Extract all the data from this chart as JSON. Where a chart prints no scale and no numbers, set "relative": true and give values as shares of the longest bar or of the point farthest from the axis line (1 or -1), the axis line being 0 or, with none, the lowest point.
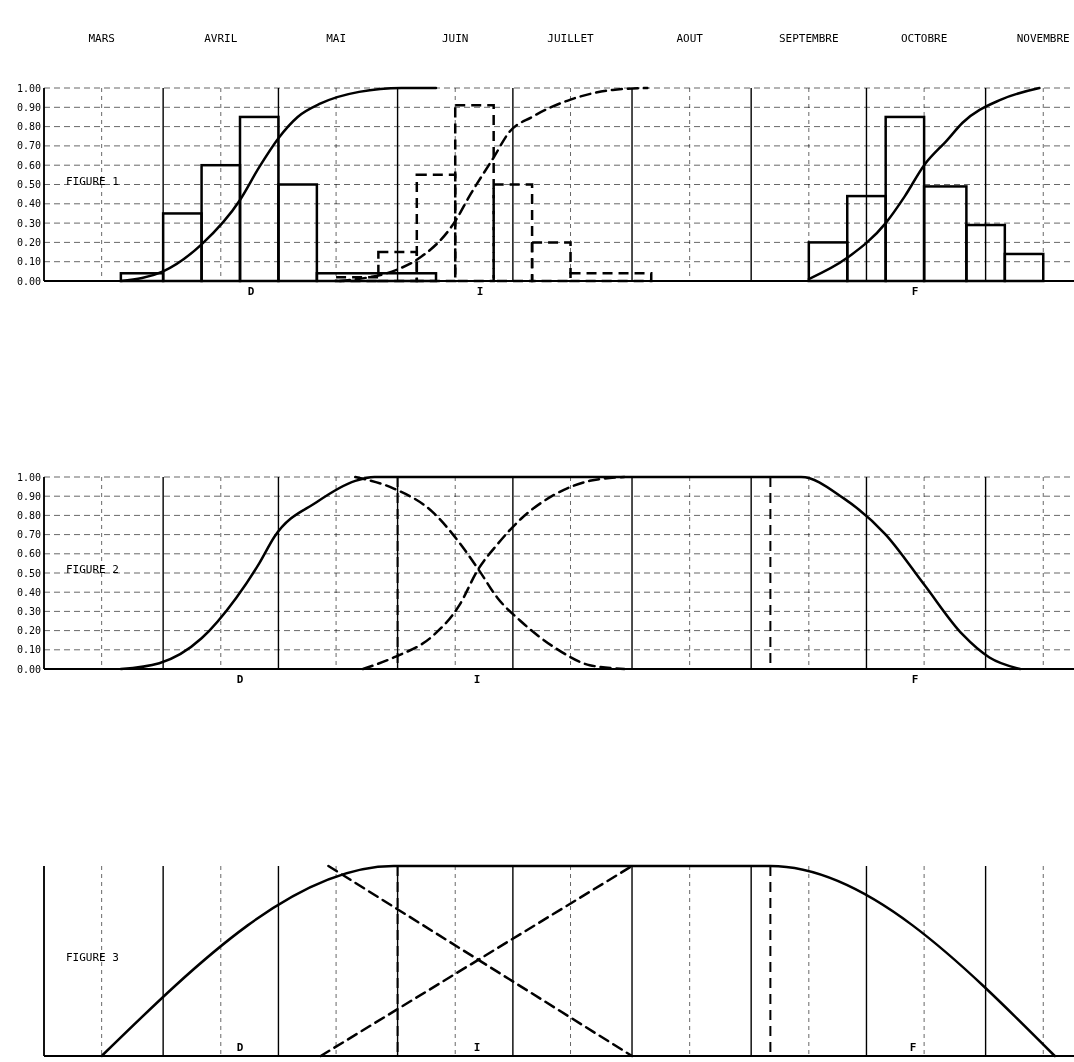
{
  "chart_data": [
    {
      "type": "histogram",
      "xlim": [
        "--03-01",
        "--11-24"
      ],
      "xticks": [
        {
          "value": "--03-01",
          "label": null
        },
        {
          "value": "--03-16",
          "label": "MARS"
        },
        {
          "value": "--04-01",
          "label": null
        },
        {
          "value": "--04-16",
          "label": "AVRIL"
        },
        {
          "value": "--05-01",
          "label": null
        },
        {
          "value": "--05-16",
          "label": "MAI"
        },
        {
          "value": "--06-01",
          "label": null
        },
        {
          "value": "--06-16",
          "label": "JUIN"
        },
        {
          "value": "--07-01",
          "label": null
        },
        {
          "value": "--07-16",
          "label": "JUILLET"
        },
        {
          "value": "--08-01",
          "label": null
        },
        {
          "value": "--08-16",
          "label": "AOUT"
        },
        {
          "value": "--09-01",
          "label": null
        },
        {
          "value": "--09-16",
          "label": "SEPTEMBRE"
        },
        {
          "value": "--10-01",
          "label": null
        },
        {
          "value": "--10-16",
          "label": "OCTOBRE"
        },
        {
          "value": "--11-01",
          "label": null
        },
        {
          "value": "--11-16",
          "label": "NOVEMBRE"
        }
      ],
      "ylim": [
        0,
        1
      ],
      "yticks": [
        {
          "value": 0,
          "label": "0.00"
        },
        {
          "value": 0.1,
          "label": "0.10"
        },
        {
          "value": 0.2,
          "label": "0.20"
        },
        {
          "value": 0.3,
          "label": "0.30"
        },
        {
          "value": 0.4,
          "label": "0.40"
        },
        {
          "value": 0.5,
          "label": "0.50"
        },
        {
          "value": 0.6,
          "label": "0.60"
        },
        {
          "value": 0.7,
          "label": "0.70"
        },
        {
          "value": 0.8,
          "label": "0.80"
        },
        {
          "value": 0.9,
          "label": "0.90"
        },
        {
          "value": 1,
          "label": "1.00"
        }
      ],
      "grid": true,
      "annotations": [
        "FIGURE 1",
        "D",
        "I",
        "F"
      ],
      "series": [
        {
          "color": "#000000",
          "line_style": "solid",
          "bins": [
            "--03-21",
            "--04-01",
            "--04-11",
            "--04-21",
            "--05-01",
            "--05-11",
            "--06-11"
          ],
          "values": [
            0.04,
            0.35,
            0.6,
            0.85,
            0.5,
            0.04
          ]
        },
        {
          "color": "#000000",
          "line_style": "dashed",
          "bins": [
            "--05-16",
            "--05-27",
            "--06-06",
            "--06-16",
            "--06-26",
            "--07-06",
            "--07-16",
            "--08-06"
          ],
          "values": [
            0.02,
            0.15,
            0.55,
            0.91,
            0.5,
            0.2,
            0.04
          ]
        },
        {
          "color": "#000000",
          "line_style": "solid",
          "bins": [
            "--09-16",
            "--09-26",
            "--10-06",
            "--10-16",
            "--10-27",
            "--11-06",
            "--11-16"
          ],
          "values": [
            0.2,
            0.44,
            0.85,
            0.49,
            0.29,
            0.14
          ]
        },
        {
          "type": "line",
          "color": "#000000",
          "line_style": "solid",
          "x": [
            "--03-21",
            "--04-01",
            "--04-11",
            "--04-21",
            "--04-26",
            "--05-01",
            "--05-06",
            "--05-12",
            "--05-22",
            "--06-02",
            "--06-11"
          ],
          "values": [
            0,
            0.05,
            0.19,
            0.42,
            0.59,
            0.74,
            0.85,
            0.92,
            0.98,
            1,
            1
          ]
        },
        {
          "type": "line",
          "color": "#000000",
          "line_style": "dashed",
          "x": [
            "--05-17",
            "--06-01",
            "--06-06",
            "--06-16",
            "--06-20",
            "--06-26",
            "--06-30",
            "--07-06",
            "--07-16",
            "--07-27",
            "--08-05"
          ],
          "values": [
            0,
            0.06,
            0.11,
            0.31,
            0.45,
            0.64,
            0.77,
            0.85,
            0.94,
            0.99,
            1
          ]
        },
        {
          "type": "line",
          "color": "#000000",
          "line_style": "solid",
          "x": [
            "--09-16",
            "--09-26",
            "--10-06",
            "--10-11",
            "--10-16",
            "--10-22",
            "--10-26",
            "--11-05",
            "--11-15"
          ],
          "values": [
            0.01,
            0.12,
            0.3,
            0.44,
            0.6,
            0.73,
            0.82,
            0.94,
            1
          ]
        }
      ]
    },
    {
      "type": "line",
      "xlim": [
        "--03-01",
        "--11-24"
      ],
      "xticks": [
        "--03-01",
        "--03-16",
        "--04-01",
        "--04-16",
        "--05-01",
        "--05-16",
        "--06-01",
        "--06-16",
        "--07-01",
        "--07-16",
        "--08-01",
        "--08-16",
        "--09-01",
        "--09-16",
        "--10-01",
        "--10-16",
        "--11-01",
        "--11-16"
      ],
      "tick_labels": "y",
      "ylim": [
        0,
        1
      ],
      "yticks": [
        {
          "value": 0,
          "label": "0.00"
        },
        {
          "value": 0.1,
          "label": "0.10"
        },
        {
          "value": 0.2,
          "label": "0.20"
        },
        {
          "value": 0.3,
          "label": "0.30"
        },
        {
          "value": 0.4,
          "label": "0.40"
        },
        {
          "value": 0.5,
          "label": "0.50"
        },
        {
          "value": 0.6,
          "label": "0.60"
        },
        {
          "value": 0.7,
          "label": "0.70"
        },
        {
          "value": 0.8,
          "label": "0.80"
        },
        {
          "value": 0.9,
          "label": "0.90"
        },
        {
          "value": 1,
          "label": "1.00"
        }
      ],
      "grid": true,
      "annotations": [
        "FIGURE 2",
        "D",
        "I",
        "F"
      ],
      "ref_lines": [
        {
          "axis": "x",
          "value": "--06-01",
          "color": "#000000",
          "line_style": "dashed"
        },
        {
          "axis": "x",
          "value": "--09-06",
          "color": "#000000",
          "line_style": "dashed"
        }
      ],
      "series": [
        {
          "color": "#000000",
          "line_style": "solid",
          "x": [
            "--03-21",
            "--03-31",
            "--04-11",
            "--04-20",
            "--04-26",
            "--04-30",
            "--05-11",
            "--05-21",
            "--05-26",
            "--09-14",
            "--09-25",
            "--10-06",
            "--10-16",
            "--10-26",
            "--11-02",
            "--11-10"
          ],
          "values": [
            0,
            0.03,
            0.16,
            0.37,
            0.55,
            0.69,
            0.87,
            0.98,
            1,
            1,
            0.89,
            0.7,
            0.44,
            0.18,
            0.06,
            0
          ]
        },
        {
          "color": "#000000",
          "line_style": "dashed",
          "x": [
            "--05-21",
            "--05-31",
            "--06-10",
            "--06-17",
            "--06-22",
            "--06-27",
            "--07-03",
            "--07-12",
            "--07-21",
            "--07-30"
          ],
          "values": [
            1,
            0.94,
            0.82,
            0.66,
            0.52,
            0.37,
            0.25,
            0.11,
            0.02,
            0
          ]
        },
        {
          "color": "#000000",
          "line_style": "dashed",
          "x": [
            "--05-23",
            "--05-31",
            "--06-10",
            "--06-17",
            "--06-22",
            "--06-27",
            "--07-03",
            "--07-12",
            "--07-21",
            "--07-30"
          ],
          "values": [
            0,
            0.06,
            0.17,
            0.33,
            0.52,
            0.65,
            0.78,
            0.91,
            0.98,
            1
          ]
        }
      ]
    },
    {
      "type": "line",
      "relative": true,
      "xlim": [
        "--03-01",
        "--11-24"
      ],
      "xticks": [
        "--03-01",
        "--03-16",
        "--04-01",
        "--04-16",
        "--05-01",
        "--05-16",
        "--06-01",
        "--06-16",
        "--07-01",
        "--07-16",
        "--08-01",
        "--08-16",
        "--09-01",
        "--09-16",
        "--10-01",
        "--10-16",
        "--11-01",
        "--11-16"
      ],
      "tick_labels": false,
      "grid": true,
      "annotations": [
        "FIGURE 3",
        "D",
        "I",
        "F"
      ],
      "ref_lines": [
        {
          "axis": "x",
          "value": "--06-01",
          "color": "#000000",
          "line_style": "dashed"
        },
        {
          "axis": "x",
          "value": "--09-06",
          "color": "#000000",
          "line_style": "dashed"
        }
      ],
      "series": [
        {
          "color": "#000000",
          "line_style": "solid",
          "x": [
            "--03-16",
            "--05-31",
            "--09-06",
            "--11-19"
          ],
          "values": [
            0,
            1,
            1,
            0
          ]
        },
        {
          "color": "#000000",
          "line_style": "dashed",
          "x": [
            "--05-14",
            "--08-01"
          ],
          "values": [
            1,
            0
          ]
        },
        {
          "color": "#000000",
          "line_style": "dashed",
          "x": [
            "--05-12",
            "--08-01"
          ],
          "values": [
            0,
            1
          ]
        }
      ]
    }
  ]
}
